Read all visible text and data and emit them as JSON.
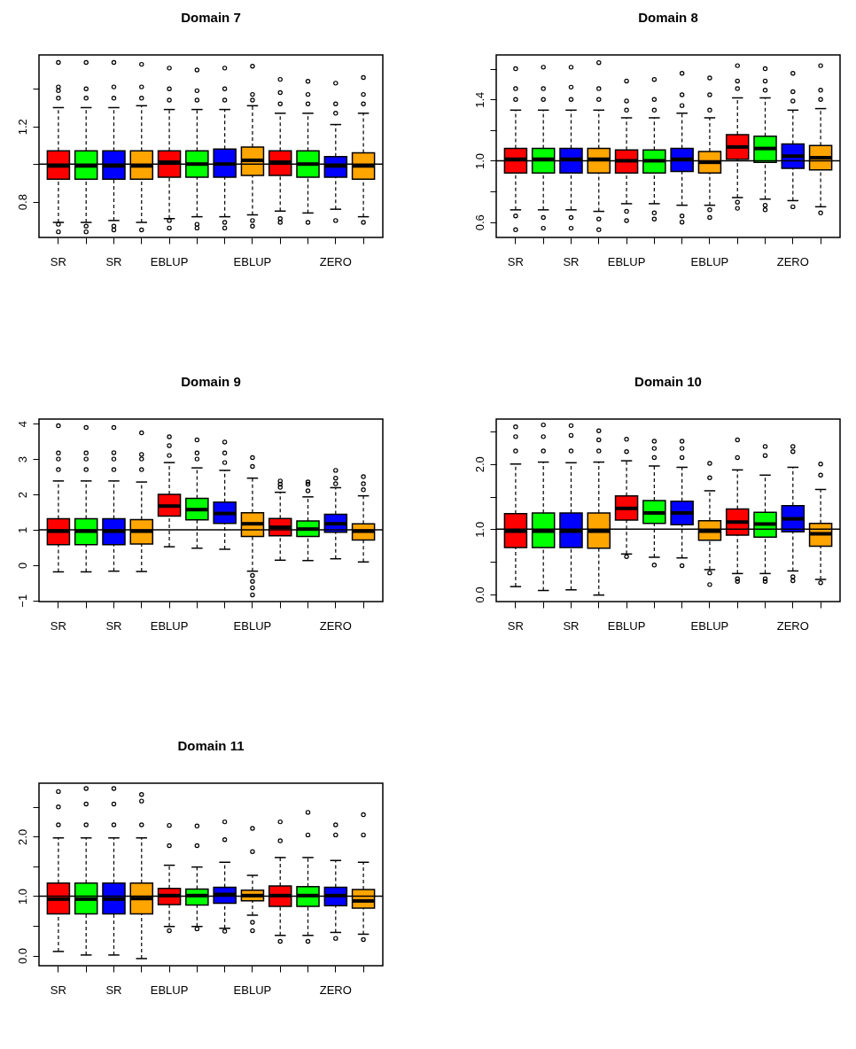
{
  "chart_data": [
    {
      "type": "box",
      "title": "Domain  7",
      "categories": [
        "SR",
        null,
        "SR",
        null,
        "EBLUP",
        null,
        null,
        "EBLUP",
        null,
        null,
        "ZERO",
        null
      ],
      "colors": [
        "#ff0000",
        "#00ff00",
        "#0000ff",
        "#ffa500",
        "#ff0000",
        "#00ff00",
        "#0000ff",
        "#ffa500",
        "#ff0000",
        "#00ff00",
        "#0000ff",
        "#ffa500"
      ],
      "boxes": [
        {
          "low": 0.69,
          "q1": 0.92,
          "median": 0.99,
          "q3": 1.07,
          "high": 1.3,
          "outliers": [
            1.35,
            1.39,
            1.41,
            1.54,
            0.68,
            0.64
          ]
        },
        {
          "low": 0.69,
          "q1": 0.92,
          "median": 0.99,
          "q3": 1.07,
          "high": 1.3,
          "outliers": [
            1.35,
            1.4,
            1.54,
            0.67,
            0.64
          ]
        },
        {
          "low": 0.7,
          "q1": 0.92,
          "median": 0.99,
          "q3": 1.07,
          "high": 1.3,
          "outliers": [
            1.35,
            1.41,
            1.54,
            0.67,
            0.65
          ]
        },
        {
          "low": 0.69,
          "q1": 0.92,
          "median": 0.99,
          "q3": 1.07,
          "high": 1.31,
          "outliers": [
            1.35,
            1.41,
            1.53,
            0.65
          ]
        },
        {
          "low": 0.71,
          "q1": 0.93,
          "median": 1.01,
          "q3": 1.07,
          "high": 1.29,
          "outliers": [
            1.34,
            1.4,
            1.51,
            0.7,
            0.66
          ]
        },
        {
          "low": 0.72,
          "q1": 0.93,
          "median": 1.0,
          "q3": 1.07,
          "high": 1.29,
          "outliers": [
            1.34,
            1.39,
            1.5,
            0.68,
            0.66
          ]
        },
        {
          "low": 0.72,
          "q1": 0.93,
          "median": 1.0,
          "q3": 1.08,
          "high": 1.29,
          "outliers": [
            1.34,
            1.4,
            1.51,
            0.69,
            0.66
          ]
        },
        {
          "low": 0.73,
          "q1": 0.94,
          "median": 1.02,
          "q3": 1.09,
          "high": 1.31,
          "outliers": [
            1.34,
            1.37,
            1.52,
            0.7,
            0.67
          ]
        },
        {
          "low": 0.75,
          "q1": 0.94,
          "median": 1.01,
          "q3": 1.07,
          "high": 1.27,
          "outliers": [
            1.32,
            1.38,
            1.45,
            0.71,
            0.69
          ]
        },
        {
          "low": 0.74,
          "q1": 0.93,
          "median": 1.0,
          "q3": 1.07,
          "high": 1.27,
          "outliers": [
            1.32,
            1.37,
            1.44,
            0.69
          ]
        },
        {
          "low": 0.76,
          "q1": 0.93,
          "median": 0.99,
          "q3": 1.04,
          "high": 1.21,
          "outliers": [
            1.27,
            1.32,
            1.43,
            0.7
          ]
        },
        {
          "low": 0.72,
          "q1": 0.92,
          "median": 0.99,
          "q3": 1.06,
          "high": 1.27,
          "outliers": [
            1.32,
            1.37,
            1.46,
            0.69
          ]
        }
      ],
      "ylim": [
        0.61,
        1.58
      ],
      "yticks": [
        {
          "value": 0.8,
          "label": "0.8"
        },
        {
          "value": 1.0,
          "label": null
        },
        {
          "value": 1.2,
          "label": "1.2"
        },
        {
          "value": 1.4,
          "label": null
        }
      ],
      "ref_lines": [
        {
          "axis": "y",
          "value": 1
        }
      ]
    },
    {
      "type": "box",
      "title": "Domain  8",
      "categories": [
        "SR",
        null,
        "SR",
        null,
        "EBLUP",
        null,
        null,
        "EBLUP",
        null,
        null,
        "ZERO",
        null
      ],
      "colors": [
        "#ff0000",
        "#00ff00",
        "#0000ff",
        "#ffa500",
        "#ff0000",
        "#00ff00",
        "#0000ff",
        "#ffa500",
        "#ff0000",
        "#00ff00",
        "#0000ff",
        "#ffa500"
      ],
      "boxes": [
        {
          "low": 0.68,
          "q1": 0.92,
          "median": 1.01,
          "q3": 1.08,
          "high": 1.33,
          "outliers": [
            1.4,
            1.47,
            1.6,
            0.64,
            0.55
          ]
        },
        {
          "low": 0.68,
          "q1": 0.92,
          "median": 1.01,
          "q3": 1.08,
          "high": 1.33,
          "outliers": [
            1.4,
            1.47,
            1.61,
            0.63,
            0.56
          ]
        },
        {
          "low": 0.68,
          "q1": 0.92,
          "median": 1.01,
          "q3": 1.08,
          "high": 1.33,
          "outliers": [
            1.4,
            1.48,
            1.61,
            0.63,
            0.56
          ]
        },
        {
          "low": 0.67,
          "q1": 0.92,
          "median": 1.01,
          "q3": 1.08,
          "high": 1.33,
          "outliers": [
            1.4,
            1.47,
            1.64,
            0.62,
            0.55
          ]
        },
        {
          "low": 0.72,
          "q1": 0.92,
          "median": 1.0,
          "q3": 1.07,
          "high": 1.28,
          "outliers": [
            1.33,
            1.39,
            1.52,
            0.67,
            0.61
          ]
        },
        {
          "low": 0.72,
          "q1": 0.92,
          "median": 1.0,
          "q3": 1.07,
          "high": 1.28,
          "outliers": [
            1.33,
            1.4,
            1.53,
            0.66,
            0.62
          ]
        },
        {
          "low": 0.71,
          "q1": 0.93,
          "median": 1.01,
          "q3": 1.08,
          "high": 1.31,
          "outliers": [
            1.36,
            1.43,
            1.57,
            0.64,
            0.6
          ]
        },
        {
          "low": 0.71,
          "q1": 0.92,
          "median": 0.99,
          "q3": 1.06,
          "high": 1.28,
          "outliers": [
            1.33,
            1.43,
            1.54,
            0.68,
            0.63
          ]
        },
        {
          "low": 0.76,
          "q1": 1.01,
          "median": 1.09,
          "q3": 1.17,
          "high": 1.41,
          "outliers": [
            1.47,
            1.52,
            1.62,
            0.73,
            0.69
          ]
        },
        {
          "low": 0.75,
          "q1": 0.99,
          "median": 1.08,
          "q3": 1.16,
          "high": 1.41,
          "outliers": [
            1.46,
            1.52,
            1.6,
            0.71,
            0.68
          ]
        },
        {
          "low": 0.74,
          "q1": 0.95,
          "median": 1.03,
          "q3": 1.11,
          "high": 1.33,
          "outliers": [
            1.39,
            1.45,
            1.57,
            0.7
          ]
        },
        {
          "low": 0.7,
          "q1": 0.94,
          "median": 1.02,
          "q3": 1.1,
          "high": 1.34,
          "outliers": [
            1.4,
            1.46,
            1.62,
            0.66
          ]
        }
      ],
      "ylim": [
        0.5,
        1.69
      ],
      "yticks": [
        {
          "value": 0.6,
          "label": "0.6"
        },
        {
          "value": 0.8,
          "label": null
        },
        {
          "value": 1.0,
          "label": "1.0"
        },
        {
          "value": 1.2,
          "label": null
        },
        {
          "value": 1.4,
          "label": "1.4"
        },
        {
          "value": 1.6,
          "label": null
        }
      ],
      "ref_lines": [
        {
          "axis": "y",
          "value": 1
        }
      ]
    },
    {
      "type": "box",
      "title": "Domain  9",
      "categories": [
        "SR",
        null,
        "SR",
        null,
        "EBLUP",
        null,
        null,
        "EBLUP",
        null,
        null,
        "ZERO",
        null
      ],
      "colors": [
        "#ff0000",
        "#00ff00",
        "#0000ff",
        "#ffa500",
        "#ff0000",
        "#00ff00",
        "#0000ff",
        "#ffa500",
        "#ff0000",
        "#00ff00",
        "#0000ff",
        "#ffa500"
      ],
      "boxes": [
        {
          "low": -0.19,
          "q1": 0.58,
          "median": 0.96,
          "q3": 1.31,
          "high": 2.38,
          "outliers": [
            2.7,
            3.0,
            3.17,
            3.94
          ]
        },
        {
          "low": -0.19,
          "q1": 0.58,
          "median": 0.96,
          "q3": 1.31,
          "high": 2.38,
          "outliers": [
            2.7,
            3.0,
            3.17,
            3.89
          ]
        },
        {
          "low": -0.17,
          "q1": 0.58,
          "median": 0.96,
          "q3": 1.31,
          "high": 2.38,
          "outliers": [
            2.7,
            3.0,
            3.18,
            3.89
          ]
        },
        {
          "low": -0.18,
          "q1": 0.6,
          "median": 0.96,
          "q3": 1.29,
          "high": 2.35,
          "outliers": [
            2.7,
            3.0,
            3.13,
            3.74
          ]
        },
        {
          "low": 0.52,
          "q1": 1.39,
          "median": 1.67,
          "q3": 2.0,
          "high": 2.9,
          "outliers": [
            3.1,
            3.38,
            3.63
          ]
        },
        {
          "low": 0.48,
          "q1": 1.28,
          "median": 1.57,
          "q3": 1.89,
          "high": 2.75,
          "outliers": [
            3.0,
            3.17,
            3.54
          ]
        },
        {
          "low": 0.45,
          "q1": 1.18,
          "median": 1.46,
          "q3": 1.78,
          "high": 2.68,
          "outliers": [
            2.9,
            3.17,
            3.48
          ]
        },
        {
          "low": -0.17,
          "q1": 0.81,
          "median": 1.17,
          "q3": 1.48,
          "high": 2.46,
          "outliers": [
            2.79,
            3.04,
            -0.29,
            -0.46,
            -0.64,
            -0.84
          ]
        },
        {
          "low": 0.14,
          "q1": 0.83,
          "median": 1.07,
          "q3": 1.32,
          "high": 2.06,
          "outliers": [
            2.2,
            2.29,
            2.38
          ]
        },
        {
          "low": 0.13,
          "q1": 0.81,
          "median": 1.02,
          "q3": 1.25,
          "high": 1.93,
          "outliers": [
            2.1,
            2.29,
            2.35
          ]
        },
        {
          "low": 0.18,
          "q1": 0.93,
          "median": 1.17,
          "q3": 1.44,
          "high": 2.19,
          "outliers": [
            2.3,
            2.46,
            2.68
          ]
        },
        {
          "low": 0.09,
          "q1": 0.71,
          "median": 0.96,
          "q3": 1.17,
          "high": 1.96,
          "outliers": [
            2.13,
            2.3,
            2.5
          ]
        }
      ],
      "ylim": [
        -1.03,
        4.13
      ],
      "yticks": [
        {
          "value": -1,
          "label": "−1"
        },
        0,
        1,
        2,
        3,
        4
      ],
      "ref_lines": [
        {
          "axis": "y",
          "value": 1
        }
      ]
    },
    {
      "type": "box",
      "title": "Domain  10",
      "categories": [
        "SR",
        null,
        "SR",
        null,
        "EBLUP",
        null,
        null,
        "EBLUP",
        null,
        null,
        "ZERO",
        null
      ],
      "colors": [
        "#ff0000",
        "#00ff00",
        "#0000ff",
        "#ffa500",
        "#ff0000",
        "#00ff00",
        "#0000ff",
        "#ffa500",
        "#ff0000",
        "#00ff00",
        "#0000ff",
        "#ffa500"
      ],
      "boxes": [
        {
          "low": 0.12,
          "q1": 0.72,
          "median": 0.97,
          "q3": 1.24,
          "high": 2.0,
          "outliers": [
            2.2,
            2.42,
            2.57
          ]
        },
        {
          "low": 0.06,
          "q1": 0.72,
          "median": 0.97,
          "q3": 1.25,
          "high": 2.03,
          "outliers": [
            2.2,
            2.42,
            2.6
          ]
        },
        {
          "low": 0.07,
          "q1": 0.72,
          "median": 0.97,
          "q3": 1.25,
          "high": 2.02,
          "outliers": [
            2.2,
            2.44,
            2.59
          ]
        },
        {
          "low": -0.01,
          "q1": 0.71,
          "median": 0.97,
          "q3": 1.25,
          "high": 2.03,
          "outliers": [
            2.2,
            2.37,
            2.51
          ]
        },
        {
          "low": 0.62,
          "q1": 1.14,
          "median": 1.32,
          "q3": 1.51,
          "high": 2.05,
          "outliers": [
            2.19,
            2.38,
            0.58
          ]
        },
        {
          "low": 0.57,
          "q1": 1.09,
          "median": 1.25,
          "q3": 1.44,
          "high": 1.97,
          "outliers": [
            2.1,
            2.24,
            2.35,
            0.45
          ]
        },
        {
          "low": 0.56,
          "q1": 1.07,
          "median": 1.25,
          "q3": 1.43,
          "high": 1.95,
          "outliers": [
            2.1,
            2.24,
            2.35,
            0.44
          ]
        },
        {
          "low": 0.38,
          "q1": 0.83,
          "median": 0.97,
          "q3": 1.13,
          "high": 1.59,
          "outliers": [
            1.79,
            2.01,
            0.33,
            0.15
          ]
        },
        {
          "low": 0.32,
          "q1": 0.91,
          "median": 1.11,
          "q3": 1.31,
          "high": 1.91,
          "outliers": [
            2.1,
            2.37,
            0.24,
            0.2
          ]
        },
        {
          "low": 0.32,
          "q1": 0.88,
          "median": 1.08,
          "q3": 1.26,
          "high": 1.83,
          "outliers": [
            2.13,
            2.27,
            0.24,
            0.2
          ]
        },
        {
          "low": 0.36,
          "q1": 0.96,
          "median": 1.16,
          "q3": 1.36,
          "high": 1.95,
          "outliers": [
            2.19,
            2.27,
            0.27,
            0.21
          ]
        },
        {
          "low": 0.23,
          "q1": 0.74,
          "median": 0.93,
          "q3": 1.09,
          "high": 1.61,
          "outliers": [
            1.83,
            2.0,
            0.18
          ]
        }
      ],
      "ylim": [
        -0.11,
        2.69
      ],
      "yticks": [
        {
          "value": 0,
          "label": "0.0"
        },
        {
          "value": 0.5,
          "label": null
        },
        {
          "value": 1,
          "label": "1.0"
        },
        {
          "value": 1.5,
          "label": null
        },
        {
          "value": 2,
          "label": "2.0"
        },
        {
          "value": 2.5,
          "label": null
        }
      ],
      "ref_lines": [
        {
          "axis": "y",
          "value": 1
        }
      ]
    },
    {
      "type": "box",
      "title": "Domain  11",
      "categories": [
        "SR",
        null,
        "SR",
        null,
        "EBLUP",
        null,
        null,
        "EBLUP",
        null,
        null,
        "ZERO",
        null
      ],
      "colors": [
        "#ff0000",
        "#00ff00",
        "#0000ff",
        "#ffa500",
        "#ff0000",
        "#00ff00",
        "#0000ff",
        "#ffa500",
        "#ff0000",
        "#00ff00",
        "#0000ff",
        "#ffa500"
      ],
      "boxes": [
        {
          "low": 0.07,
          "q1": 0.7,
          "median": 0.95,
          "q3": 1.22,
          "high": 1.98,
          "outliers": [
            2.2,
            2.5,
            2.76
          ]
        },
        {
          "low": 0.01,
          "q1": 0.7,
          "median": 0.95,
          "q3": 1.22,
          "high": 1.98,
          "outliers": [
            2.2,
            2.55,
            2.81
          ]
        },
        {
          "low": 0.01,
          "q1": 0.7,
          "median": 0.95,
          "q3": 1.22,
          "high": 1.98,
          "outliers": [
            2.2,
            2.55,
            2.81
          ]
        },
        {
          "low": -0.05,
          "q1": 0.7,
          "median": 0.96,
          "q3": 1.22,
          "high": 1.98,
          "outliers": [
            2.2,
            2.6,
            2.71
          ]
        },
        {
          "low": 0.49,
          "q1": 0.86,
          "median": 1.01,
          "q3": 1.13,
          "high": 1.52,
          "outliers": [
            1.85,
            2.19,
            0.42
          ]
        },
        {
          "low": 0.49,
          "q1": 0.85,
          "median": 1.01,
          "q3": 1.12,
          "high": 1.49,
          "outliers": [
            1.85,
            2.18,
            0.45
          ]
        },
        {
          "low": 0.46,
          "q1": 0.88,
          "median": 1.03,
          "q3": 1.15,
          "high": 1.57,
          "outliers": [
            1.95,
            2.25,
            0.41
          ]
        },
        {
          "low": 0.68,
          "q1": 0.92,
          "median": 1.01,
          "q3": 1.1,
          "high": 1.35,
          "outliers": [
            1.75,
            2.14,
            0.56,
            0.42
          ]
        },
        {
          "low": 0.34,
          "q1": 0.83,
          "median": 1.01,
          "q3": 1.17,
          "high": 1.65,
          "outliers": [
            1.93,
            2.25,
            0.24
          ]
        },
        {
          "low": 0.34,
          "q1": 0.83,
          "median": 1.01,
          "q3": 1.16,
          "high": 1.65,
          "outliers": [
            2.03,
            2.41,
            0.24
          ]
        },
        {
          "low": 0.39,
          "q1": 0.84,
          "median": 1.01,
          "q3": 1.15,
          "high": 1.6,
          "outliers": [
            2.03,
            2.2,
            0.29
          ]
        },
        {
          "low": 0.36,
          "q1": 0.8,
          "median": 0.92,
          "q3": 1.11,
          "high": 1.57,
          "outliers": [
            2.03,
            2.37,
            0.27
          ]
        }
      ],
      "ylim": [
        -0.17,
        2.9
      ],
      "yticks": [
        {
          "value": 0,
          "label": "0.0"
        },
        {
          "value": 0.5,
          "label": null
        },
        {
          "value": 1,
          "label": "1.0"
        },
        {
          "value": 1.5,
          "label": null
        },
        {
          "value": 2,
          "label": "2.0"
        },
        {
          "value": 2.5,
          "label": null
        }
      ],
      "ref_lines": [
        {
          "axis": "y",
          "value": 1
        }
      ]
    }
  ]
}
